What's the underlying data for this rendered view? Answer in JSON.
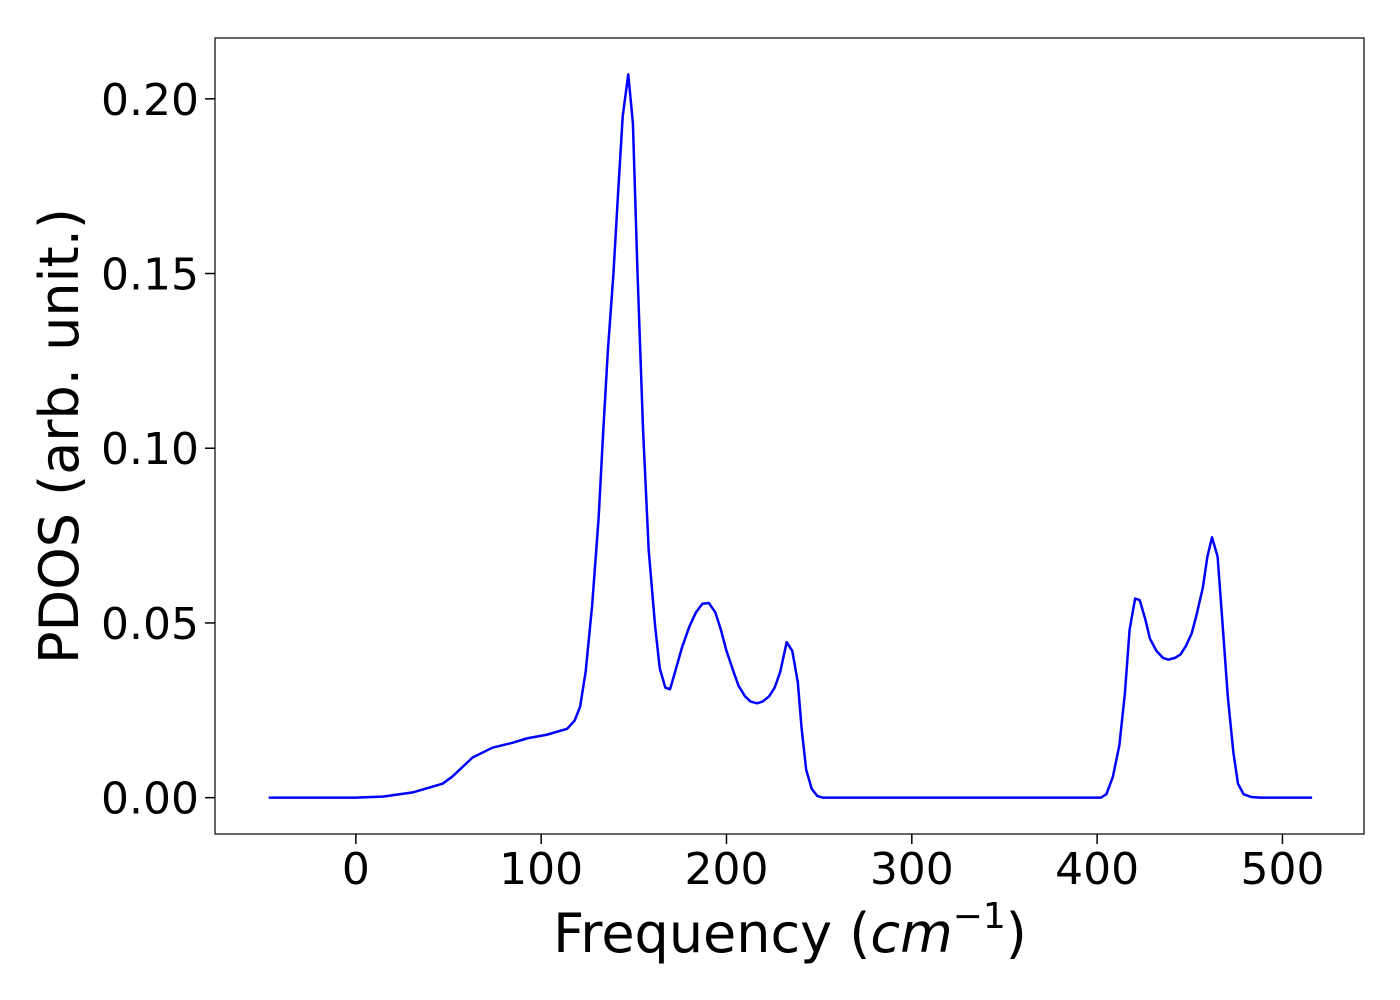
{
  "chart_data": {
    "type": "line",
    "xlabel": [
      "Frequency (",
      "cm",
      "−1",
      ")"
    ],
    "ylabel": "PDOS (arb. unit.)",
    "x": [
      -47,
      0,
      14.5,
      30.7,
      46.8,
      52,
      63,
      73.7,
      84.5,
      92.6,
      103,
      114,
      118,
      121,
      124,
      127.5,
      131,
      133.5,
      136,
      139,
      141.5,
      144,
      147,
      149.5,
      152,
      155,
      158,
      161.5,
      164,
      167,
      169.5,
      172,
      176,
      180,
      183.5,
      187,
      190.5,
      194,
      197,
      200,
      203.5,
      206.5,
      210,
      213,
      216.5,
      219.5,
      223,
      226,
      229,
      232.5,
      235.5,
      238.5,
      240.5,
      243,
      246,
      249,
      252,
      402,
      405,
      408.5,
      412,
      415,
      417.5,
      420.5,
      423,
      426,
      428.5,
      432,
      435.5,
      438.5,
      442,
      445,
      448,
      451,
      453.5,
      457,
      459.5,
      462,
      465,
      467.5,
      470.5,
      473.5,
      476,
      479,
      483,
      488,
      516
    ],
    "series": [
      {
        "name": "PDOS",
        "color": "#0000ff",
        "values": [
          0,
          0,
          0.0003,
          0.0015,
          0.004,
          0.006,
          0.0115,
          0.0143,
          0.0157,
          0.017,
          0.018,
          0.0197,
          0.022,
          0.026,
          0.036,
          0.055,
          0.08,
          0.105,
          0.128,
          0.15,
          0.173,
          0.195,
          0.207,
          0.193,
          0.15,
          0.105,
          0.071,
          0.049,
          0.037,
          0.0315,
          0.031,
          0.0355,
          0.043,
          0.049,
          0.053,
          0.0555,
          0.0557,
          0.053,
          0.048,
          0.042,
          0.0365,
          0.032,
          0.029,
          0.0275,
          0.027,
          0.0275,
          0.029,
          0.0315,
          0.036,
          0.0445,
          0.042,
          0.033,
          0.02,
          0.008,
          0.0025,
          0.0005,
          0,
          0,
          0.001,
          0.006,
          0.015,
          0.03,
          0.048,
          0.057,
          0.0565,
          0.051,
          0.0455,
          0.042,
          0.04,
          0.0395,
          0.04,
          0.041,
          0.0435,
          0.047,
          0.052,
          0.06,
          0.069,
          0.0745,
          0.069,
          0.051,
          0.029,
          0.013,
          0.004,
          0.001,
          0.0002,
          0,
          0
        ]
      }
    ],
    "xlim": [
      -76,
      544
    ],
    "ylim": [
      -0.0104,
      0.2174
    ],
    "xticks": [
      0,
      100,
      200,
      300,
      400,
      500
    ],
    "yticks": [
      {
        "value": 0,
        "label": "0.00"
      },
      {
        "value": 0.05,
        "label": "0.05"
      },
      {
        "value": 0.1,
        "label": "0.10"
      },
      {
        "value": 0.15,
        "label": "0.15"
      },
      {
        "value": 0.2,
        "label": "0.20"
      }
    ]
  }
}
